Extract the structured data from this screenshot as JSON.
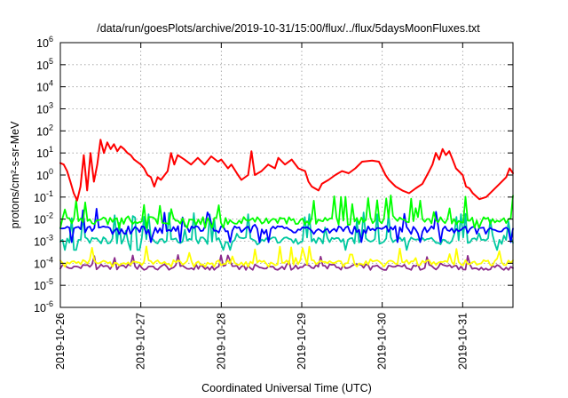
{
  "chart_data": {
    "type": "line",
    "title": "/data/run/goesPlots/archive/2019-10-31/15:00/flux/../flux/5daysMoonFluxes.txt",
    "xlabel": "Coordinated Universal Time (UTC)",
    "ylabel": "protons/cm²-s-sr-MeV",
    "y_scale": "log",
    "ylim_exponents": [
      -6,
      6
    ],
    "y_tick_base": "10",
    "y_tick_exponents": [
      "-6",
      "-5",
      "-4",
      "-3",
      "-2",
      "-1",
      "0",
      "1",
      "2",
      "3",
      "4",
      "5",
      "6"
    ],
    "xlim": [
      "2019-10-26T00:00",
      "2019-10-31T15:00"
    ],
    "x_tick_labels": [
      "2019-10-26",
      "2019-10-27",
      "2019-10-28",
      "2019-10-29",
      "2019-10-30",
      "2019-10-31"
    ],
    "grid": true,
    "series_colors": [
      "#ff0000",
      "#00ff00",
      "#00c8a0",
      "#0000ff",
      "#ffff00",
      "#8b2a8b"
    ],
    "series": [
      {
        "color": "#ff0000",
        "points": [
          [
            "2019-10-26T00:00",
            3.5
          ],
          [
            "2019-10-26T01:00",
            3.0
          ],
          [
            "2019-10-26T02:00",
            1.5
          ],
          [
            "2019-10-26T03:00",
            0.5
          ],
          [
            "2019-10-26T04:00",
            0.15
          ],
          [
            "2019-10-26T05:00",
            0.07
          ],
          [
            "2019-10-26T06:00",
            0.3
          ],
          [
            "2019-10-26T07:00",
            8.0
          ],
          [
            "2019-10-26T08:00",
            0.2
          ],
          [
            "2019-10-26T09:00",
            10.0
          ],
          [
            "2019-10-26T10:00",
            0.5
          ],
          [
            "2019-10-26T11:00",
            3.0
          ],
          [
            "2019-10-26T12:00",
            40.0
          ],
          [
            "2019-10-26T13:00",
            10.0
          ],
          [
            "2019-10-26T14:00",
            30.0
          ],
          [
            "2019-10-26T15:00",
            15.0
          ],
          [
            "2019-10-26T16:00",
            25.0
          ],
          [
            "2019-10-26T17:00",
            12.0
          ],
          [
            "2019-10-26T18:00",
            20.0
          ],
          [
            "2019-10-26T19:00",
            15.0
          ],
          [
            "2019-10-26T20:00",
            10.0
          ],
          [
            "2019-10-26T21:00",
            8.0
          ],
          [
            "2019-10-26T22:00",
            5.0
          ],
          [
            "2019-10-27T00:00",
            3.0
          ],
          [
            "2019-10-27T01:00",
            2.0
          ],
          [
            "2019-10-27T02:00",
            1.0
          ],
          [
            "2019-10-27T03:00",
            0.8
          ],
          [
            "2019-10-27T04:00",
            0.3
          ],
          [
            "2019-10-27T05:00",
            0.8
          ],
          [
            "2019-10-27T06:00",
            0.6
          ],
          [
            "2019-10-27T08:00",
            1.5
          ],
          [
            "2019-10-27T09:00",
            10.0
          ],
          [
            "2019-10-27T10:00",
            3.0
          ],
          [
            "2019-10-27T11:00",
            8.0
          ],
          [
            "2019-10-27T13:00",
            5.0
          ],
          [
            "2019-10-27T15:00",
            3.0
          ],
          [
            "2019-10-27T17:00",
            6.0
          ],
          [
            "2019-10-27T19:00",
            3.0
          ],
          [
            "2019-10-27T21:00",
            7.0
          ],
          [
            "2019-10-27T23:00",
            4.0
          ],
          [
            "2019-10-28T00:00",
            5.0
          ],
          [
            "2019-10-28T02:00",
            2.0
          ],
          [
            "2019-10-28T03:00",
            3.0
          ],
          [
            "2019-10-28T05:00",
            1.0
          ],
          [
            "2019-10-28T06:00",
            0.6
          ],
          [
            "2019-10-28T08:00",
            1.0
          ],
          [
            "2019-10-28T09:00",
            12.0
          ],
          [
            "2019-10-28T10:00",
            1.0
          ],
          [
            "2019-10-28T12:00",
            1.5
          ],
          [
            "2019-10-28T14:00",
            3.0
          ],
          [
            "2019-10-28T16:00",
            2.0
          ],
          [
            "2019-10-28T17:00",
            6.0
          ],
          [
            "2019-10-28T19:00",
            3.0
          ],
          [
            "2019-10-28T21:00",
            5.0
          ],
          [
            "2019-10-28T23:00",
            2.0
          ],
          [
            "2019-10-29T01:00",
            1.5
          ],
          [
            "2019-10-29T02:00",
            0.5
          ],
          [
            "2019-10-29T03:00",
            0.3
          ],
          [
            "2019-10-29T05:00",
            0.2
          ],
          [
            "2019-10-29T06:00",
            0.4
          ],
          [
            "2019-10-29T08:00",
            0.6
          ],
          [
            "2019-10-29T10:00",
            1.0
          ],
          [
            "2019-10-29T12:00",
            1.5
          ],
          [
            "2019-10-29T14:00",
            1.2
          ],
          [
            "2019-10-29T16:00",
            2.0
          ],
          [
            "2019-10-29T18:00",
            4.0
          ],
          [
            "2019-10-29T21:00",
            4.5
          ],
          [
            "2019-10-29T23:00",
            4.0
          ],
          [
            "2019-10-30T00:00",
            2.0
          ],
          [
            "2019-10-30T01:00",
            1.0
          ],
          [
            "2019-10-30T02:00",
            0.6
          ],
          [
            "2019-10-30T04:00",
            0.3
          ],
          [
            "2019-10-30T06:00",
            0.2
          ],
          [
            "2019-10-30T08:00",
            0.15
          ],
          [
            "2019-10-30T10:00",
            0.25
          ],
          [
            "2019-10-30T12:00",
            0.4
          ],
          [
            "2019-10-30T14:00",
            1.5
          ],
          [
            "2019-10-30T15:00",
            3.0
          ],
          [
            "2019-10-30T16:00",
            10.0
          ],
          [
            "2019-10-30T17:00",
            5.0
          ],
          [
            "2019-10-30T18:00",
            15.0
          ],
          [
            "2019-10-30T19:00",
            8.0
          ],
          [
            "2019-10-30T20:00",
            12.0
          ],
          [
            "2019-10-30T21:00",
            5.0
          ],
          [
            "2019-10-30T22:00",
            2.0
          ],
          [
            "2019-10-31T00:00",
            1.0
          ],
          [
            "2019-10-31T01:00",
            0.3
          ],
          [
            "2019-10-31T02:00",
            0.25
          ],
          [
            "2019-10-31T03:00",
            0.15
          ],
          [
            "2019-10-31T05:00",
            0.08
          ],
          [
            "2019-10-31T07:00",
            0.1
          ],
          [
            "2019-10-31T09:00",
            0.2
          ],
          [
            "2019-10-31T11:00",
            0.4
          ],
          [
            "2019-10-31T13:00",
            0.8
          ],
          [
            "2019-10-31T14:00",
            2.0
          ],
          [
            "2019-10-31T15:00",
            1.2
          ]
        ]
      },
      {
        "color": "#00ff00",
        "base": 0.009,
        "var": 0.0035,
        "spike": 0.12,
        "dip": 0.004
      },
      {
        "color": "#00c8a0",
        "base": 0.0011,
        "var": 0.0004,
        "spike": 0.02,
        "dip": 0.0004
      },
      {
        "color": "#0000ff",
        "base": 0.0035,
        "var": 0.0014,
        "spike": 0.03,
        "dip": 0.0009
      },
      {
        "color": "#ffff00",
        "base": 0.00011,
        "var": 3e-05,
        "spike": 0.0006,
        "dip": 7e-05
      },
      {
        "color": "#8b2a8b",
        "base": 7e-05,
        "var": 2e-05,
        "spike": 0.00025,
        "dip": 5e-05
      }
    ]
  }
}
